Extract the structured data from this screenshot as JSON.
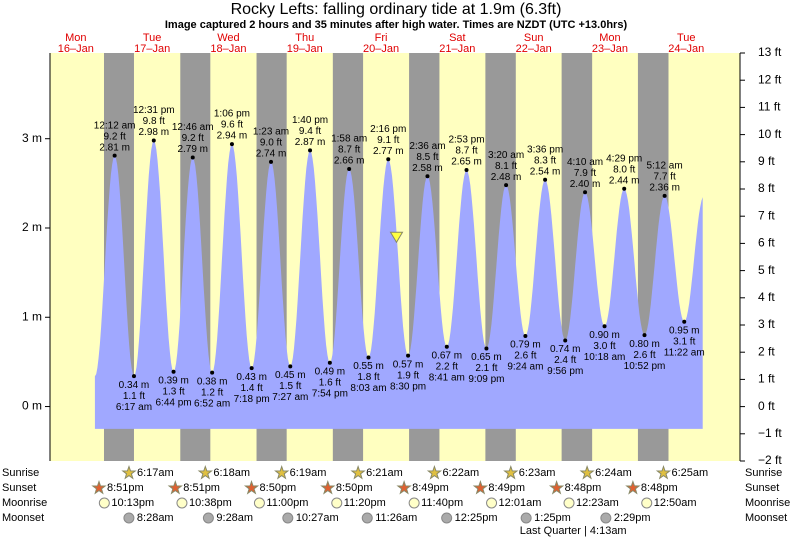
{
  "title": "Rocky Lefts: falling  ordinary tide at 1.9m (6.3ft)",
  "subtitle": "Image captured 2 hours and 35 minutes after high water. Times are NZDT (UTC +13.0hrs)",
  "chart_data": {
    "type": "tide",
    "categories": [
      "Mon",
      "Tue",
      "Wed",
      "Thu",
      "Fri",
      "Sat",
      "Sun",
      "Mon",
      "Tue"
    ],
    "dates": [
      "16–Jan",
      "17–Jan",
      "18–Jan",
      "19–Jan",
      "20–Jan",
      "21–Jan",
      "22–Jan",
      "23–Jan",
      "24–Jan"
    ],
    "ylim": [
      -0.61,
      3.96
    ],
    "yticks": [
      {
        "value": 0,
        "label": "0 m"
      },
      {
        "value": 1,
        "label": "1 m"
      },
      {
        "value": 2,
        "label": "2 m"
      },
      {
        "value": 3,
        "label": "3 m"
      }
    ],
    "y2lim": [
      -2,
      13
    ],
    "y2ticks": [
      {
        "value": -2,
        "label": "−2 ft"
      },
      {
        "value": -1,
        "label": "−1 ft"
      },
      {
        "value": 0,
        "label": "0 ft"
      },
      {
        "value": 1,
        "label": "1 ft"
      },
      {
        "value": 2,
        "label": "2 ft"
      },
      {
        "value": 3,
        "label": "3 ft"
      },
      {
        "value": 4,
        "label": "4 ft"
      },
      {
        "value": 5,
        "label": "5 ft"
      },
      {
        "value": 6,
        "label": "6 ft"
      },
      {
        "value": 7,
        "label": "7 ft"
      },
      {
        "value": 8,
        "label": "8 ft"
      },
      {
        "value": 9,
        "label": "9 ft"
      },
      {
        "value": 10,
        "label": "10 ft"
      },
      {
        "value": 11,
        "label": "11 ft"
      },
      {
        "value": 12,
        "label": "12 ft"
      },
      {
        "value": 13,
        "label": "13 ft"
      }
    ],
    "colors": {
      "day": "#ffffc0",
      "night": "#999999",
      "tide": "#a0a8ff"
    },
    "tides": [
      [],
      [
        {
          "time": "12:12 am",
          "value": 2.81,
          "value_label": "2.81 m",
          "ft": 9.2,
          "ft_label": "9.2 ft"
        },
        {
          "time": "6:17 am",
          "value": 0.34,
          "value_label": "0.34 m",
          "ft": 1.1,
          "ft_label": "1.1 ft"
        },
        {
          "time": "12:31 pm",
          "value": 2.98,
          "value_label": "2.98 m",
          "ft": 9.8,
          "ft_label": "9.8 ft"
        },
        {
          "time": "6:44 pm",
          "value": 0.39,
          "value_label": "0.39 m",
          "ft": 1.3,
          "ft_label": "1.3 ft"
        }
      ],
      [
        {
          "time": "12:46 am",
          "value": 2.79,
          "value_label": "2.79 m",
          "ft": 9.2,
          "ft_label": "9.2 ft"
        },
        {
          "time": "6:52 am",
          "value": 0.38,
          "value_label": "0.38 m",
          "ft": 1.2,
          "ft_label": "1.2 ft"
        },
        {
          "time": "1:06 pm",
          "value": 2.94,
          "value_label": "2.94 m",
          "ft": 9.6,
          "ft_label": "9.6 ft"
        },
        {
          "time": "7:18 pm",
          "value": 0.43,
          "value_label": "0.43 m",
          "ft": 1.4,
          "ft_label": "1.4 ft"
        }
      ],
      [
        {
          "time": "1:23 am",
          "value": 2.74,
          "value_label": "2.74 m",
          "ft": 9.0,
          "ft_label": "9.0 ft"
        },
        {
          "time": "7:27 am",
          "value": 0.45,
          "value_label": "0.45 m",
          "ft": 1.5,
          "ft_label": "1.5 ft"
        },
        {
          "time": "1:40 pm",
          "value": 2.87,
          "value_label": "2.87 m",
          "ft": 9.4,
          "ft_label": "9.4 ft"
        },
        {
          "time": "7:54 pm",
          "value": 0.49,
          "value_label": "0.49 m",
          "ft": 1.6,
          "ft_label": "1.6 ft"
        }
      ],
      [
        {
          "time": "1:58 am",
          "value": 2.66,
          "value_label": "2.66 m",
          "ft": 8.7,
          "ft_label": "8.7 ft"
        },
        {
          "time": "8:03 am",
          "value": 0.55,
          "value_label": "0.55 m",
          "ft": 1.8,
          "ft_label": "1.8 ft"
        },
        {
          "time": "2:16 pm",
          "value": 2.77,
          "value_label": "2.77 m",
          "ft": 9.1,
          "ft_label": "9.1 ft"
        },
        {
          "time": "8:30 pm",
          "value": 0.57,
          "value_label": "0.57 m",
          "ft": 1.9,
          "ft_label": "1.9 ft"
        }
      ],
      [
        {
          "time": "2:36 am",
          "value": 2.58,
          "value_label": "2.58 m",
          "ft": 8.5,
          "ft_label": "8.5 ft"
        },
        {
          "time": "8:41 am",
          "value": 0.67,
          "value_label": "0.67 m",
          "ft": 2.2,
          "ft_label": "2.2 ft"
        },
        {
          "time": "2:53 pm",
          "value": 2.65,
          "value_label": "2.65 m",
          "ft": 8.7,
          "ft_label": "8.7 ft"
        },
        {
          "time": "9:09 pm",
          "value": 0.65,
          "value_label": "0.65 m",
          "ft": 2.1,
          "ft_label": "2.1 ft"
        }
      ],
      [
        {
          "time": "3:20 am",
          "value": 2.48,
          "value_label": "2.48 m",
          "ft": 8.1,
          "ft_label": "8.1 ft"
        },
        {
          "time": "9:24 am",
          "value": 0.79,
          "value_label": "0.79 m",
          "ft": 2.6,
          "ft_label": "2.6 ft"
        },
        {
          "time": "3:36 pm",
          "value": 2.54,
          "value_label": "2.54 m",
          "ft": 8.3,
          "ft_label": "8.3 ft"
        },
        {
          "time": "9:56 pm",
          "value": 0.74,
          "value_label": "0.74 m",
          "ft": 2.4,
          "ft_label": "2.4 ft"
        }
      ],
      [
        {
          "time": "4:10 am",
          "value": 2.4,
          "value_label": "2.40 m",
          "ft": 7.9,
          "ft_label": "7.9 ft"
        },
        {
          "time": "10:18 am",
          "value": 0.9,
          "value_label": "0.90 m",
          "ft": 3.0,
          "ft_label": "3.0 ft"
        },
        {
          "time": "4:29 pm",
          "value": 2.44,
          "value_label": "2.44 m",
          "ft": 8.0,
          "ft_label": "8.0 ft"
        },
        {
          "time": "10:52 pm",
          "value": 0.8,
          "value_label": "0.80 m",
          "ft": 2.6,
          "ft_label": "2.6 ft"
        }
      ],
      [
        {
          "time": "5:12 am",
          "value": 2.36,
          "value_label": "2.36 m",
          "ft": 7.7,
          "ft_label": "7.7 ft"
        },
        {
          "time": "11:22 am",
          "value": 0.95,
          "value_label": "0.95 m",
          "ft": 3.1,
          "ft_label": "3.1 ft"
        }
      ]
    ],
    "row_labels": [
      "Sunrise",
      "Sunset",
      "Moonrise",
      "Moonset"
    ],
    "sunrise": [
      null,
      "6:17am",
      "6:18am",
      "6:19am",
      "6:21am",
      "6:22am",
      "6:23am",
      "6:24am",
      "6:25am"
    ],
    "sunset": [
      "8:51pm",
      "8:51pm",
      "8:50pm",
      "8:50pm",
      "8:49pm",
      "8:49pm",
      "8:48pm",
      "8:48pm",
      null
    ],
    "moonrise": [
      "10:13pm",
      "10:38pm",
      "11:00pm",
      "11:20pm",
      "11:40pm",
      null,
      "12:01am",
      "12:23am",
      "12:50am"
    ],
    "moonset": [
      null,
      "8:28am",
      "9:28am",
      "10:27am",
      "11:26am",
      "12:25pm",
      "1:25pm",
      "2:29pm",
      null
    ],
    "moon_phase": [
      null,
      null,
      null,
      null,
      null,
      null,
      null,
      "Last Quarter | 4:13am",
      null
    ]
  }
}
